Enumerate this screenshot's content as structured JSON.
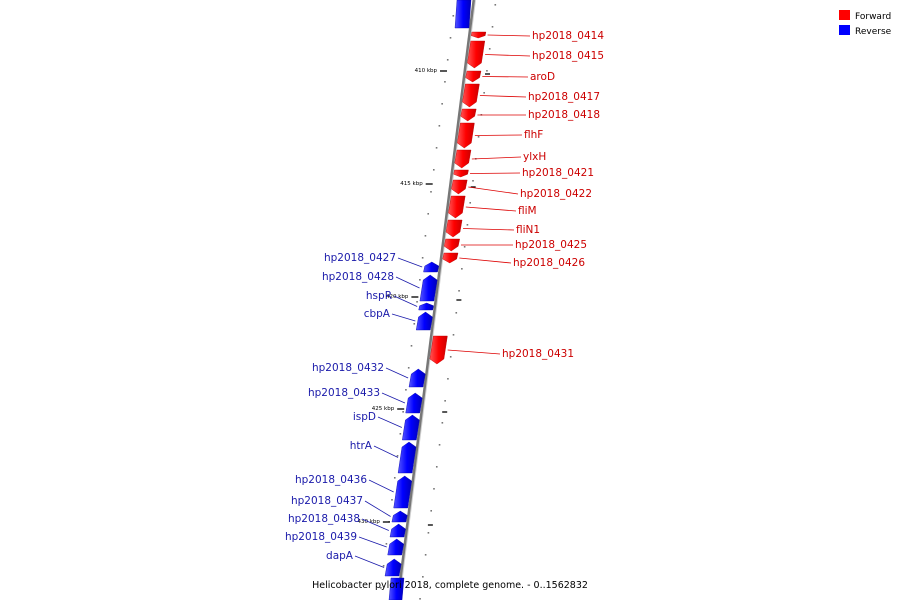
{
  "caption": "Helicobacter pylori 2018, complete genome. - 0..1562832",
  "legend": [
    {
      "label": "Forward",
      "color": "#ff0000"
    },
    {
      "label": "Reverse",
      "color": "#0000ff"
    }
  ],
  "ticks": [
    "410 kbp",
    "415 kbp",
    "420 kbp",
    "425 kbp",
    "430 kbp"
  ],
  "forward_genes": [
    "hp2018_0414",
    "hp2018_0415",
    "aroD",
    "hp2018_0417",
    "hp2018_0418",
    "flhF",
    "ylxH",
    "hp2018_0421",
    "hp2018_0422",
    "fliM",
    "fliN1",
    "hp2018_0425",
    "hp2018_0426",
    "hp2018_0431"
  ],
  "reverse_genes": [
    "hp2018_0427",
    "hp2018_0428",
    "hspR",
    "cbpA",
    "hp2018_0432",
    "hp2018_0433",
    "ispD",
    "htrA",
    "hp2018_0436",
    "hp2018_0437",
    "hp2018_0438",
    "hp2018_0439",
    "dapA"
  ],
  "colors": {
    "forward": "#ff0000",
    "reverse": "#0000ff",
    "forward_text": "#cc0000",
    "reverse_text": "#1a1aaa",
    "backbone": "#888888"
  }
}
